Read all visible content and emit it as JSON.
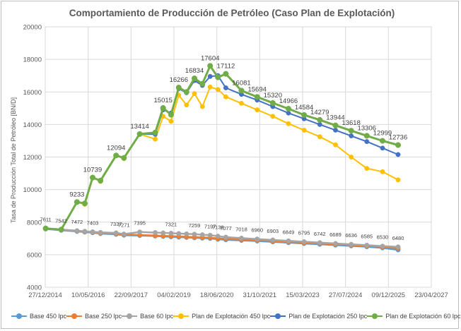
{
  "chart_data": {
    "type": "line",
    "title": "Comportamiento de Producción de Petróleo (Caso Plan de Explotación)",
    "ylabel": "Tasa de Producción Total de Petróleo [BN/D]",
    "xlabel": "",
    "ylim": [
      4000,
      20000
    ],
    "yticks": [
      4000,
      6000,
      8000,
      10000,
      12000,
      14000,
      16000,
      18000,
      20000
    ],
    "xlim": [
      "2014-12-27",
      "2027-04-23"
    ],
    "xticks": [
      "2014-12-27",
      "2016-05-10",
      "2017-09-22",
      "2019-02-04",
      "2020-06-18",
      "2021-10-31",
      "2023-03-15",
      "2024-07-27",
      "2025-12-09",
      "2027-04-23"
    ],
    "xtick_labels": [
      "27/12/2014",
      "10/05/2016",
      "22/09/2017",
      "04/02/2019",
      "18/06/2020",
      "31/10/2021",
      "15/03/2023",
      "27/07/2024",
      "09/12/2025",
      "23/04/2027"
    ],
    "grid": true,
    "legend_position": "bottom",
    "dates": [
      "2015-01-01",
      "2015-07-01",
      "2016-01-01",
      "2016-04-01",
      "2016-07-01",
      "2016-10-01",
      "2017-04-01",
      "2017-07-01",
      "2018-01-01",
      "2018-07-01",
      "2018-10-01",
      "2019-01-01",
      "2019-04-01",
      "2019-07-01",
      "2019-10-01",
      "2020-01-01",
      "2020-04-01",
      "2020-07-01",
      "2020-10-01",
      "2021-04-01",
      "2021-10-01",
      "2022-04-01",
      "2022-10-01",
      "2023-04-01",
      "2023-10-01",
      "2024-04-01",
      "2024-10-01",
      "2025-04-01",
      "2025-10-01",
      "2026-04-01"
    ],
    "series": [
      {
        "name": "Base 450 lpc",
        "color": "#5b9bd5",
        "values": [
          7580,
          7500,
          7430,
          7390,
          7350,
          7300,
          7250,
          7200,
          7180,
          7150,
          7120,
          7100,
          7080,
          7060,
          7040,
          7020,
          7000,
          6950,
          6920,
          6880,
          6840,
          6790,
          6740,
          6690,
          6640,
          6590,
          6540,
          6490,
          6420,
          6300
        ]
      },
      {
        "name": "Base 250 lpc",
        "color": "#ed7d31",
        "values": [
          7600,
          7530,
          7460,
          7420,
          7380,
          7330,
          7290,
          7240,
          7210,
          7180,
          7160,
          7140,
          7120,
          7100,
          7080,
          7060,
          7040,
          7000,
          6970,
          6930,
          6890,
          6840,
          6790,
          6740,
          6690,
          6640,
          6590,
          6540,
          6480,
          6400
        ]
      },
      {
        "name": "Base 60 lpc",
        "color": "#a5a5a5",
        "values": [
          7611,
          7542,
          7472,
          7440,
          7403,
          7370,
          7337,
          7271,
          7395,
          7360,
          7340,
          7321,
          7300,
          7280,
          7259,
          7228,
          7197,
          7138,
          7077,
          7018,
          6960,
          6903,
          6849,
          6795,
          6742,
          6689,
          6636,
          6585,
          6530,
          6480
        ]
      },
      {
        "name": "Plan de Explotación 450 lpc",
        "color": "#ffc000",
        "values": [
          7611,
          7542,
          9233,
          9100,
          10739,
          10500,
          12094,
          11900,
          13414,
          13100,
          14500,
          14200,
          15800,
          15200,
          15900,
          15100,
          16300,
          16150,
          15700,
          15300,
          14900,
          14500,
          14050,
          13650,
          13250,
          12750,
          12000,
          11300,
          11100,
          10600
        ]
      },
      {
        "name": "Plan de Explotación 250 lpc",
        "color": "#4472c4",
        "values": [
          7611,
          7542,
          9233,
          9150,
          10739,
          10550,
          12094,
          11950,
          13414,
          13400,
          14900,
          14700,
          16200,
          15950,
          16700,
          16400,
          16950,
          17000,
          16250,
          15850,
          15500,
          15100,
          14700,
          14350,
          14000,
          13650,
          13300,
          12950,
          12550,
          12150
        ]
      },
      {
        "name": "Plan de Explotación 60 lpc",
        "color": "#70ad47",
        "values": [
          7611,
          7542,
          9233,
          9150,
          10739,
          10550,
          12094,
          11950,
          13414,
          13500,
          15015,
          14600,
          16266,
          16000,
          16834,
          16500,
          17604,
          16900,
          17112,
          16081,
          15694,
          15320,
          14966,
          14584,
          14279,
          13944,
          13618,
          13306,
          12999,
          12736
        ]
      }
    ],
    "data_labels": {
      "Base 60 lpc": [
        "7611",
        "7542",
        "7472",
        "7403",
        "7337",
        "7271",
        "7395",
        "7321",
        "7259",
        "7197",
        "7138",
        "7077",
        "7018",
        "6960",
        "6903",
        "6849",
        "6795",
        "6742",
        "6689",
        "6636",
        "6585",
        "6530",
        "6480"
      ],
      "Plan de Explotación 60 lpc": [
        "9233",
        "10739",
        "12094",
        "13414",
        "15015",
        "16266",
        "16834",
        "17604",
        "17112",
        "16081",
        "15694",
        "15320",
        "14966",
        "14584",
        "14279",
        "13944",
        "13618",
        "13306",
        "12999",
        "12736"
      ]
    }
  }
}
